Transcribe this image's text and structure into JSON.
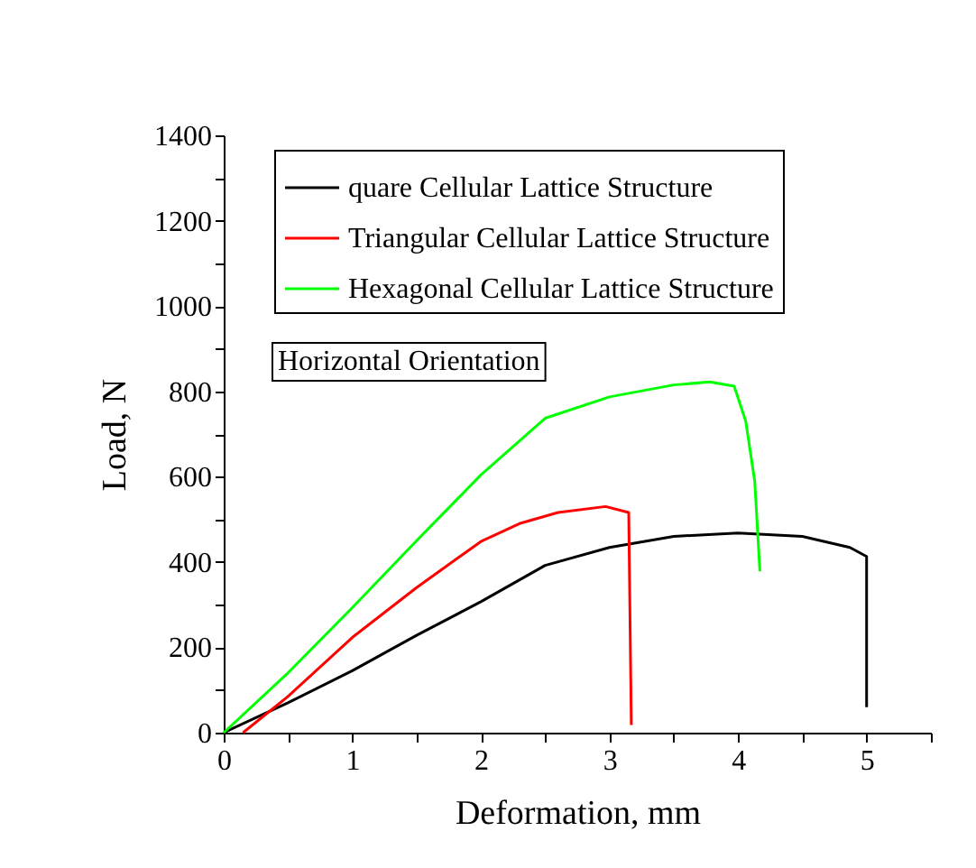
{
  "chart_data": {
    "type": "line",
    "xlabel": "Deformation, mm",
    "ylabel": "Load, N",
    "annotations": [
      "Horizontal Orientation"
    ],
    "xlim": [
      0,
      5.5
    ],
    "xticks": [
      0,
      {
        "value": 0.5,
        "label": null
      },
      1,
      {
        "value": 1.5,
        "label": null
      },
      2,
      {
        "value": 2.5,
        "label": null
      },
      3,
      {
        "value": 3.5,
        "label": null
      },
      4,
      {
        "value": 4.5,
        "label": null
      },
      5,
      {
        "value": 5.5,
        "label": null
      }
    ],
    "ylim": [
      0,
      1400
    ],
    "yticks": [
      0,
      {
        "value": 100,
        "label": null
      },
      200,
      {
        "value": 300,
        "label": null
      },
      400,
      {
        "value": 500,
        "label": null
      },
      600,
      {
        "value": 700,
        "label": null
      },
      800,
      {
        "value": 900,
        "label": null
      },
      1000,
      {
        "value": 1100,
        "label": null
      },
      1200,
      {
        "value": 1300,
        "label": null
      },
      1400
    ],
    "legend": "top",
    "grid": false,
    "marker": "none",
    "line_style": "solid",
    "series": [
      {
        "name": "quare Cellular Lattice Structure",
        "color": "#000000",
        "x": [
          0,
          0.5,
          1.0,
          1.5,
          2.0,
          2.5,
          3.0,
          3.5,
          4.0,
          4.5,
          4.87,
          5.0,
          5.0
        ],
        "values": [
          0,
          70,
          145,
          228,
          307,
          392,
          434,
          460,
          468,
          460,
          434,
          413,
          60
        ]
      },
      {
        "name": "Triangular Cellular Lattice Structure",
        "color": "#ff0000",
        "x": [
          0.15,
          0.5,
          1.0,
          1.5,
          2.0,
          2.3,
          2.6,
          2.97,
          3.15,
          3.17
        ],
        "values": [
          0,
          85,
          223,
          340,
          448,
          490,
          516,
          530,
          516,
          18
        ]
      },
      {
        "name": "Hexagonal Cellular Lattice Structure",
        "color": "#00ff00",
        "x": [
          0,
          0.5,
          1.0,
          1.5,
          2.0,
          2.5,
          3.0,
          3.5,
          3.78,
          3.97,
          4.06,
          4.13,
          4.17
        ],
        "values": [
          0,
          140,
          293,
          450,
          604,
          737,
          787,
          815,
          822,
          812,
          730,
          589,
          378
        ]
      }
    ]
  }
}
